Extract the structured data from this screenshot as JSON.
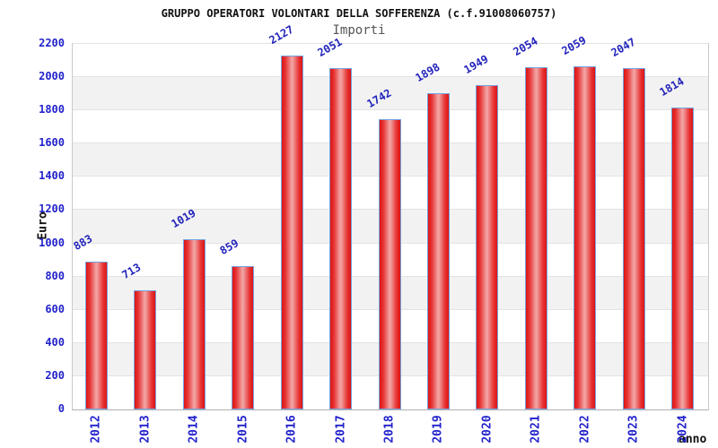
{
  "header": {
    "title": "GRUPPO OPERATORI VOLONTARI DELLA SOFFERENZA (c.f.91008060757)",
    "subtitle": "Importi"
  },
  "axes": {
    "y_title": "Euro",
    "x_title": "anno",
    "y_tick_labels": [
      "0",
      "200",
      "400",
      "600",
      "800",
      "1000",
      "1200",
      "1400",
      "1600",
      "1800",
      "2000",
      "2200"
    ]
  },
  "chart_data": {
    "type": "bar",
    "title": "GRUPPO OPERATORI VOLONTARI DELLA SOFFERENZA (c.f.91008060757)",
    "subtitle": "Importi",
    "xlabel": "anno",
    "ylabel": "Euro",
    "categories": [
      "2012",
      "2013",
      "2014",
      "2015",
      "2016",
      "2017",
      "2018",
      "2019",
      "2020",
      "2021",
      "2022",
      "2023",
      "2024"
    ],
    "values": [
      883,
      713,
      1019,
      859,
      2127,
      2051,
      1742,
      1898,
      1949,
      2054,
      2059,
      2047,
      1814
    ],
    "ylim": [
      0,
      2200
    ],
    "ytick_step": 200,
    "grid": "alternating-bands",
    "legend_position": "none",
    "data_labels": true
  },
  "colors": {
    "label_blue": "#2222cc",
    "bar_red": "#dd1414",
    "bar_highlight": "#f2a2a2",
    "bar_border_blue": "#74a4e0",
    "band_gray": "#f2f2f2",
    "gridline": "#e3e3e3",
    "plot_border": "#c9c9c9",
    "title_black": "#111111",
    "subtitle_gray": "#555555"
  }
}
